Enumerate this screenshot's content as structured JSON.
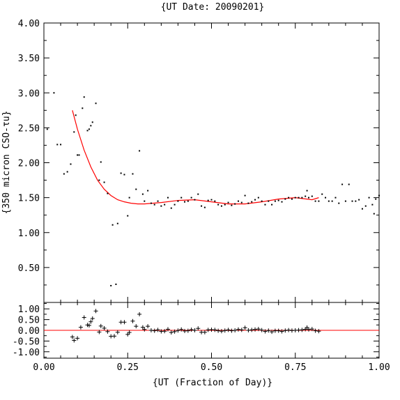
{
  "chart_data": [
    {
      "type": "scatter",
      "title": "{UT Date: 20090201}",
      "xlabel": "",
      "ylabel": "{350 micron CSO-τu}",
      "xlim": [
        0,
        1
      ],
      "ylim": [
        0,
        4
      ],
      "yticks": [
        "0.50",
        "1.00",
        "1.50",
        "2.00",
        "2.50",
        "3.00",
        "3.50",
        "4.00"
      ],
      "grid": false,
      "series": [
        {
          "kind": "points",
          "color": "#000000",
          "points": [
            [
              0.01,
              2.48
            ],
            [
              0.03,
              3.0
            ],
            [
              0.04,
              2.26
            ],
            [
              0.05,
              2.26
            ],
            [
              0.06,
              1.84
            ],
            [
              0.07,
              1.87
            ],
            [
              0.08,
              1.98
            ],
            [
              0.09,
              2.44
            ],
            [
              0.095,
              2.68
            ],
            [
              0.1,
              2.11
            ],
            [
              0.105,
              2.11
            ],
            [
              0.115,
              2.78
            ],
            [
              0.12,
              2.94
            ],
            [
              0.13,
              2.46
            ],
            [
              0.135,
              2.48
            ],
            [
              0.14,
              2.53
            ],
            [
              0.145,
              2.58
            ],
            [
              0.155,
              2.85
            ],
            [
              0.165,
              1.75
            ],
            [
              0.17,
              2.01
            ],
            [
              0.18,
              1.72
            ],
            [
              0.19,
              1.56
            ],
            [
              0.2,
              0.24
            ],
            [
              0.205,
              1.11
            ],
            [
              0.215,
              0.26
            ],
            [
              0.22,
              1.13
            ],
            [
              0.23,
              1.85
            ],
            [
              0.24,
              1.83
            ],
            [
              0.25,
              1.24
            ],
            [
              0.255,
              1.5
            ],
            [
              0.265,
              1.84
            ],
            [
              0.275,
              1.62
            ],
            [
              0.285,
              2.17
            ],
            [
              0.295,
              1.55
            ],
            [
              0.3,
              1.45
            ],
            [
              0.31,
              1.6
            ],
            [
              0.32,
              1.42
            ],
            [
              0.33,
              1.4
            ],
            [
              0.34,
              1.45
            ],
            [
              0.35,
              1.38
            ],
            [
              0.36,
              1.4
            ],
            [
              0.37,
              1.5
            ],
            [
              0.38,
              1.35
            ],
            [
              0.39,
              1.4
            ],
            [
              0.4,
              1.45
            ],
            [
              0.41,
              1.5
            ],
            [
              0.42,
              1.44
            ],
            [
              0.43,
              1.45
            ],
            [
              0.44,
              1.5
            ],
            [
              0.45,
              1.47
            ],
            [
              0.46,
              1.55
            ],
            [
              0.47,
              1.38
            ],
            [
              0.48,
              1.36
            ],
            [
              0.49,
              1.46
            ],
            [
              0.5,
              1.47
            ],
            [
              0.51,
              1.45
            ],
            [
              0.52,
              1.4
            ],
            [
              0.53,
              1.38
            ],
            [
              0.54,
              1.4
            ],
            [
              0.55,
              1.43
            ],
            [
              0.56,
              1.39
            ],
            [
              0.57,
              1.41
            ],
            [
              0.58,
              1.45
            ],
            [
              0.59,
              1.43
            ],
            [
              0.6,
              1.53
            ],
            [
              0.61,
              1.42
            ],
            [
              0.62,
              1.44
            ],
            [
              0.63,
              1.47
            ],
            [
              0.64,
              1.5
            ],
            [
              0.65,
              1.45
            ],
            [
              0.66,
              1.4
            ],
            [
              0.67,
              1.45
            ],
            [
              0.68,
              1.4
            ],
            [
              0.69,
              1.45
            ],
            [
              0.7,
              1.46
            ],
            [
              0.71,
              1.44
            ],
            [
              0.72,
              1.48
            ],
            [
              0.73,
              1.5
            ],
            [
              0.74,
              1.48
            ],
            [
              0.75,
              1.5
            ],
            [
              0.76,
              1.5
            ],
            [
              0.77,
              1.5
            ],
            [
              0.78,
              1.52
            ],
            [
              0.785,
              1.6
            ],
            [
              0.79,
              1.5
            ],
            [
              0.8,
              1.52
            ],
            [
              0.81,
              1.45
            ],
            [
              0.82,
              1.45
            ],
            [
              0.83,
              1.55
            ],
            [
              0.84,
              1.5
            ],
            [
              0.85,
              1.45
            ],
            [
              0.86,
              1.45
            ],
            [
              0.87,
              1.5
            ],
            [
              0.88,
              1.42
            ],
            [
              0.89,
              1.69
            ],
            [
              0.9,
              1.45
            ],
            [
              0.91,
              1.69
            ],
            [
              0.92,
              1.45
            ],
            [
              0.93,
              1.45
            ],
            [
              0.94,
              1.47
            ],
            [
              0.95,
              1.34
            ],
            [
              0.96,
              1.38
            ],
            [
              0.97,
              1.5
            ],
            [
              0.98,
              1.4
            ],
            [
              0.985,
              1.27
            ],
            [
              0.99,
              1.48
            ],
            [
              1.0,
              1.53
            ]
          ]
        },
        {
          "kind": "fit",
          "color": "#ff0000",
          "points": [
            [
              0.085,
              2.75
            ],
            [
              0.1,
              2.48
            ],
            [
              0.12,
              2.18
            ],
            [
              0.14,
              1.94
            ],
            [
              0.16,
              1.75
            ],
            [
              0.18,
              1.62
            ],
            [
              0.2,
              1.53
            ],
            [
              0.22,
              1.47
            ],
            [
              0.24,
              1.44
            ],
            [
              0.26,
              1.42
            ],
            [
              0.28,
              1.41
            ],
            [
              0.3,
              1.41
            ],
            [
              0.35,
              1.43
            ],
            [
              0.4,
              1.46
            ],
            [
              0.45,
              1.47
            ],
            [
              0.5,
              1.44
            ],
            [
              0.55,
              1.41
            ],
            [
              0.6,
              1.41
            ],
            [
              0.65,
              1.44
            ],
            [
              0.7,
              1.48
            ],
            [
              0.75,
              1.5
            ],
            [
              0.8,
              1.47
            ],
            [
              0.82,
              1.5
            ]
          ]
        }
      ]
    },
    {
      "type": "scatter",
      "title": "",
      "xlabel": "{UT (Fraction of Day)}",
      "ylabel": "",
      "xlim": [
        0,
        1
      ],
      "ylim": [
        -1.3,
        1.3
      ],
      "xticks": [
        "0.00",
        "0.25",
        "0.50",
        "0.75",
        "1.00"
      ],
      "yticks": [
        "1.00",
        "0.50",
        "0.00",
        "-0.50",
        "-1.00"
      ],
      "grid": false,
      "series": [
        {
          "kind": "residuals",
          "color": "#000000",
          "points": [
            [
              0.085,
              -0.31
            ],
            [
              0.09,
              -0.47
            ],
            [
              0.1,
              -0.37
            ],
            [
              0.11,
              0.14
            ],
            [
              0.12,
              0.6
            ],
            [
              0.13,
              0.25
            ],
            [
              0.135,
              0.23
            ],
            [
              0.14,
              0.4
            ],
            [
              0.145,
              0.55
            ],
            [
              0.155,
              0.9
            ],
            [
              0.165,
              -0.08
            ],
            [
              0.17,
              0.2
            ],
            [
              0.18,
              0.1
            ],
            [
              0.19,
              -0.06
            ],
            [
              0.2,
              -0.28
            ],
            [
              0.21,
              -0.27
            ],
            [
              0.22,
              -0.09
            ],
            [
              0.23,
              0.38
            ],
            [
              0.24,
              0.38
            ],
            [
              0.25,
              -0.19
            ],
            [
              0.255,
              -0.1
            ],
            [
              0.265,
              0.43
            ],
            [
              0.275,
              0.19
            ],
            [
              0.285,
              0.75
            ],
            [
              0.295,
              0.14
            ],
            [
              0.3,
              0.04
            ],
            [
              0.31,
              0.19
            ],
            [
              0.32,
              0.0
            ],
            [
              0.33,
              -0.02
            ],
            [
              0.34,
              0.02
            ],
            [
              0.35,
              -0.05
            ],
            [
              0.36,
              -0.04
            ],
            [
              0.37,
              0.05
            ],
            [
              0.38,
              -0.1
            ],
            [
              0.39,
              -0.06
            ],
            [
              0.4,
              -0.01
            ],
            [
              0.41,
              0.04
            ],
            [
              0.42,
              -0.03
            ],
            [
              0.43,
              -0.02
            ],
            [
              0.44,
              0.03
            ],
            [
              0.45,
              0.0
            ],
            [
              0.46,
              0.09
            ],
            [
              0.47,
              -0.09
            ],
            [
              0.48,
              -0.09
            ],
            [
              0.49,
              0.02
            ],
            [
              0.5,
              0.03
            ],
            [
              0.51,
              0.02
            ],
            [
              0.52,
              -0.02
            ],
            [
              0.53,
              -0.04
            ],
            [
              0.54,
              -0.01
            ],
            [
              0.55,
              0.02
            ],
            [
              0.56,
              -0.02
            ],
            [
              0.57,
              0.0
            ],
            [
              0.58,
              0.04
            ],
            [
              0.59,
              0.02
            ],
            [
              0.6,
              0.12
            ],
            [
              0.61,
              0.0
            ],
            [
              0.62,
              0.02
            ],
            [
              0.63,
              0.04
            ],
            [
              0.64,
              0.06
            ],
            [
              0.65,
              0.01
            ],
            [
              0.66,
              -0.05
            ],
            [
              0.67,
              -0.01
            ],
            [
              0.68,
              -0.07
            ],
            [
              0.69,
              -0.02
            ],
            [
              0.7,
              -0.02
            ],
            [
              0.71,
              -0.05
            ],
            [
              0.72,
              -0.01
            ],
            [
              0.73,
              0.01
            ],
            [
              0.74,
              -0.01
            ],
            [
              0.75,
              0.0
            ],
            [
              0.76,
              0.01
            ],
            [
              0.77,
              0.02
            ],
            [
              0.78,
              0.05
            ],
            [
              0.785,
              0.13
            ],
            [
              0.79,
              0.04
            ],
            [
              0.8,
              0.06
            ],
            [
              0.81,
              -0.02
            ],
            [
              0.82,
              -0.04
            ]
          ]
        },
        {
          "kind": "zero-line",
          "color": "#ff0000",
          "points": [
            [
              0,
              0
            ],
            [
              1,
              0
            ]
          ]
        }
      ]
    }
  ]
}
